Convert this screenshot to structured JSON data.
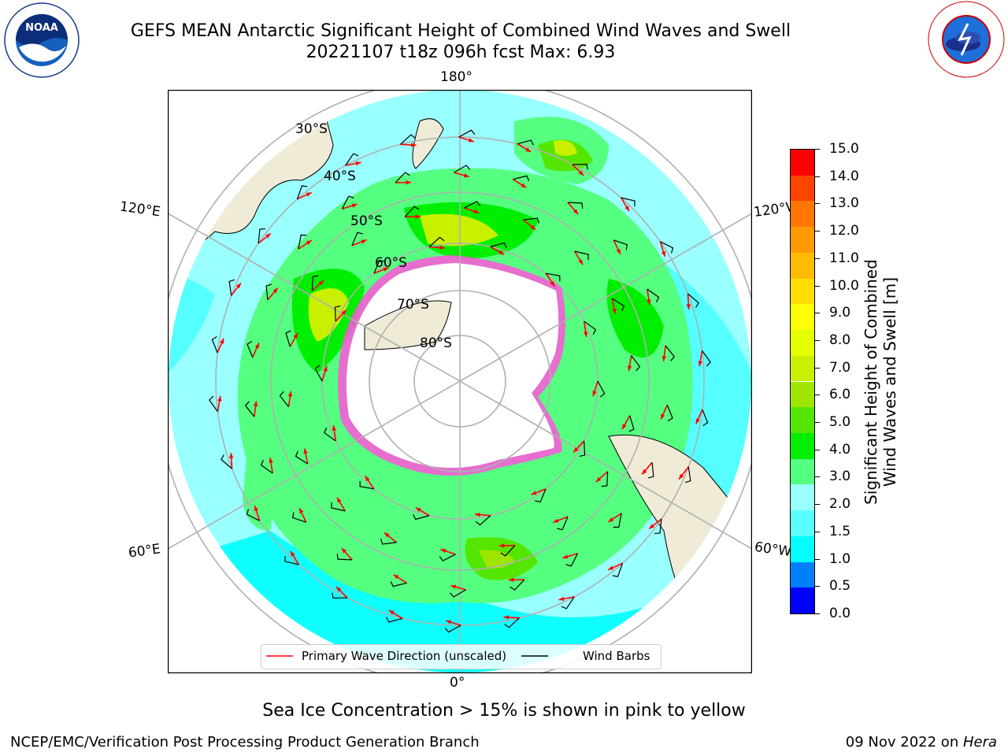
{
  "header": {
    "title_line1": "GEFS MEAN Antarctic Significant Height of Combined Wind Waves and Swell",
    "title_line2": "20221107 t18z 096h fcst   Max: 6.93"
  },
  "logos": {
    "left": {
      "icon": "noaa-logo-icon",
      "text": "NOAA"
    },
    "right": {
      "icon": "nws-logo-icon",
      "text": "NATIONAL WEATHER SERVICE"
    }
  },
  "map": {
    "projection": "south-polar-stereographic",
    "lon_labels": {
      "top": "180°",
      "bottom": "0°",
      "upper_left": "120°E",
      "upper_right": "120°W",
      "lower_left": "60°E",
      "lower_right": "60°W"
    },
    "lat_labels": [
      "30°S",
      "40°S",
      "50°S",
      "60°S",
      "70°S",
      "80°S"
    ],
    "colors": {
      "land": "#efebd7",
      "ice": "#ffffff",
      "ocean_low": "#99ffff",
      "sea_ice": "#ff55dd",
      "wave_arrow": "#ff0000",
      "wind_barb": "#000000"
    }
  },
  "legend": {
    "primary_wave": "Primary Wave Direction (unscaled)",
    "wind_barbs": "Wind Barbs",
    "primary_wave_color": "#ff0000",
    "wind_barbs_color": "#000000"
  },
  "colorbar": {
    "label_line1": "Significant Height of Combined",
    "label_line2": "Wind Waves and Swell [m]",
    "ticks": [
      "15.0",
      "14.0",
      "13.0",
      "12.0",
      "11.0",
      "10.0",
      "9.0",
      "8.0",
      "7.0",
      "6.0",
      "5.0",
      "4.0",
      "3.0",
      "2.0",
      "1.5",
      "1.0",
      "0.5",
      "0.0"
    ],
    "colors": [
      "#0000ff",
      "#0080ff",
      "#00ffff",
      "#5cffff",
      "#9cffff",
      "#55ff80",
      "#00ee00",
      "#55e600",
      "#9ee600",
      "#c8f000",
      "#e6ff00",
      "#ffff00",
      "#ffdd00",
      "#ffbb00",
      "#ff9900",
      "#ff7700",
      "#ff4400",
      "#ff0000"
    ]
  },
  "caption": "Sea Ice Concentration > 15% is shown in pink to yellow",
  "footer": {
    "left": "NCEP/EMC/Verification Post Processing Product Generation Branch",
    "right_date": "09 Nov 2022 on ",
    "right_host": "Hera"
  }
}
